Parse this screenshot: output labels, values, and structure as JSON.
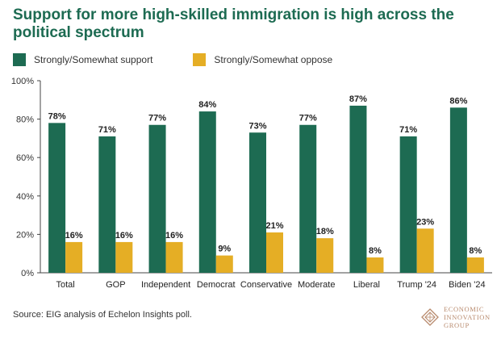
{
  "title": "Support for more high-skilled immigration is high across the political spectrum",
  "source": "Source: EIG analysis of Echelon Insights poll.",
  "logo": {
    "line1": "ECONOMIC",
    "line2": "INNOVATION",
    "line3": "GROUP"
  },
  "colors": {
    "support": "#1d6b52",
    "oppose": "#e5ae25",
    "title": "#1d6b52",
    "logo": "#b88a6d"
  },
  "chart_data": {
    "type": "bar",
    "title": "Support for more high-skilled immigration is high across the political spectrum",
    "xlabel": "",
    "ylabel": "",
    "ylim": [
      0,
      100
    ],
    "yticks": [
      "0%",
      "20%",
      "40%",
      "60%",
      "80%",
      "100%"
    ],
    "legend_position": "top-left",
    "categories": [
      "Total",
      "GOP",
      "Independent",
      "Democrat",
      "Conservative",
      "Moderate",
      "Liberal",
      "Trump '24",
      "Biden '24"
    ],
    "series": [
      {
        "name": "Strongly/Somewhat support",
        "values": [
          78,
          71,
          77,
          84,
          73,
          77,
          87,
          71,
          86
        ],
        "labels": [
          "78%",
          "71%",
          "77%",
          "84%",
          "73%",
          "77%",
          "87%",
          "71%",
          "86%"
        ]
      },
      {
        "name": "Strongly/Somewhat oppose",
        "values": [
          16,
          16,
          16,
          9,
          21,
          18,
          8,
          23,
          8
        ],
        "labels": [
          "16%",
          "16%",
          "16%",
          "9%",
          "21%",
          "18%",
          "8%",
          "23%",
          "8%"
        ]
      }
    ]
  }
}
